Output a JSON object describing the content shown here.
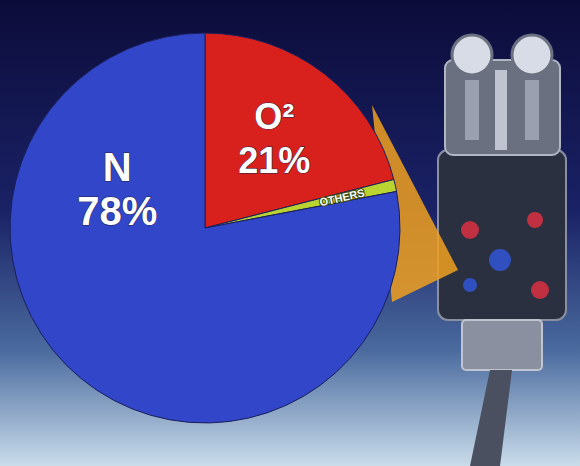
{
  "chart_data": {
    "type": "pie",
    "categories": [
      "O²",
      "OTHERS",
      "N"
    ],
    "values": [
      21,
      1,
      78
    ],
    "value_labels": [
      "21%",
      null,
      "78%"
    ],
    "colors": [
      "#d8211c",
      "#b9d430",
      "#3146c8"
    ],
    "data_labels": true
  }
}
